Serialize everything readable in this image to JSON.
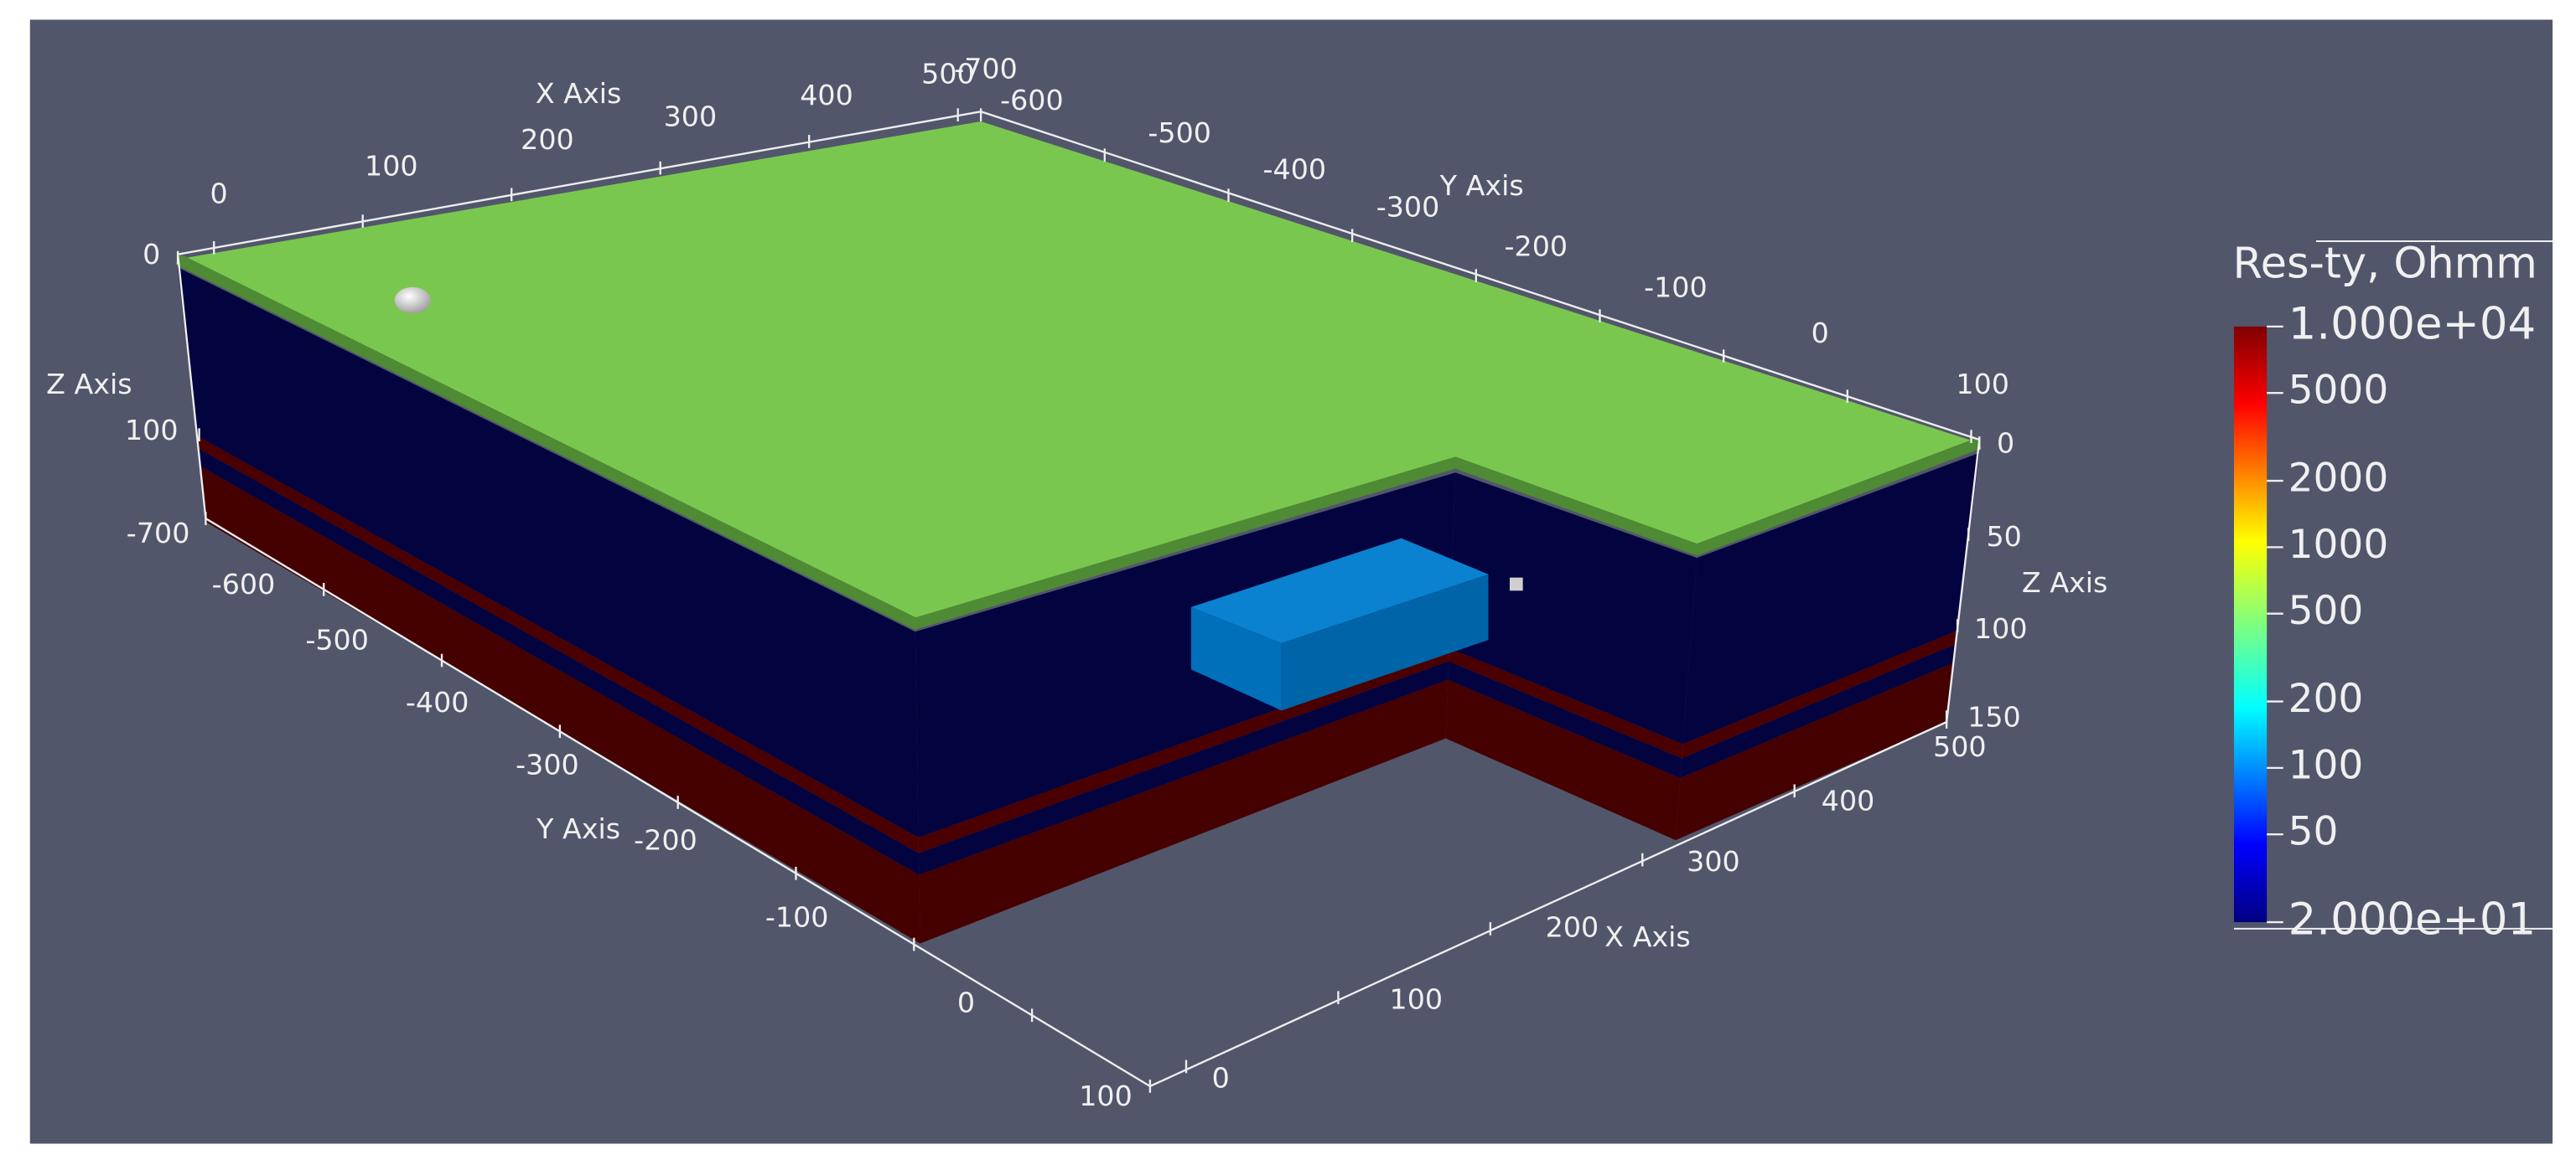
{
  "x_axis_top": {
    "title": "X Axis",
    "ticks": [
      0,
      100,
      200,
      300,
      400,
      500
    ]
  },
  "y_axis_top": {
    "title": "Y Axis",
    "ticks": [
      -700,
      -600,
      -500,
      -400,
      -300,
      -200,
      -100,
      0,
      100
    ]
  },
  "z_axis_left": {
    "title": "Z Axis",
    "ticks": [
      0,
      100
    ]
  },
  "y_axis_left": {
    "title": "Y Axis",
    "ticks": [
      -700,
      -600,
      -500,
      -400,
      -300,
      -200,
      -100,
      0,
      100
    ]
  },
  "x_axis_bottom": {
    "title": "X Axis",
    "ticks": [
      0,
      100,
      200,
      300,
      400,
      500
    ]
  },
  "z_axis_right": {
    "title": "Z Axis",
    "ticks": [
      0,
      50,
      100,
      150
    ]
  },
  "colorbar": {
    "title": "Res-ty, Ohmm",
    "log_scale": true,
    "range": [
      20,
      10000
    ],
    "ticks": [
      {
        "value": 10000,
        "label": "1.000e+04"
      },
      5000,
      2000,
      1000,
      500,
      200,
      100,
      50,
      {
        "value": 20,
        "label": "2.000e+01"
      }
    ]
  }
}
